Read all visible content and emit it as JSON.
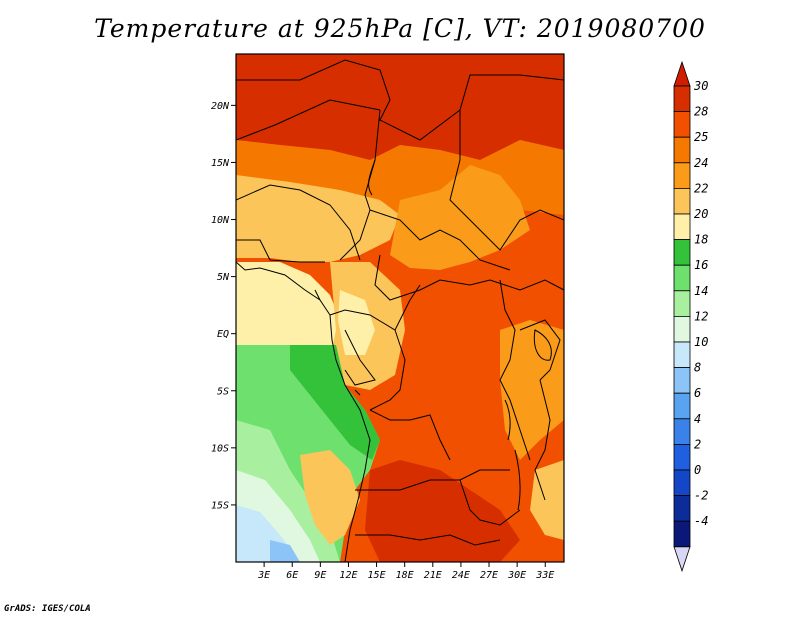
{
  "title": "Temperature at 925hPa [C], VT: 2019080700",
  "credit": "GrADS: IGES/COLA",
  "map": {
    "lat_ticks": [
      {
        "lat": 20,
        "label": "20N"
      },
      {
        "lat": 15,
        "label": "15N"
      },
      {
        "lat": 10,
        "label": "10N"
      },
      {
        "lat": 5,
        "label": "5N"
      },
      {
        "lat": 0,
        "label": "EQ"
      },
      {
        "lat": -5,
        "label": "5S"
      },
      {
        "lat": -10,
        "label": "10S"
      },
      {
        "lat": -15,
        "label": "15S"
      }
    ],
    "lon_ticks": [
      {
        "lon": 3,
        "label": "3E"
      },
      {
        "lon": 6,
        "label": "6E"
      },
      {
        "lon": 9,
        "label": "9E"
      },
      {
        "lon": 12,
        "label": "12E"
      },
      {
        "lon": 15,
        "label": "15E"
      },
      {
        "lon": 18,
        "label": "18E"
      },
      {
        "lon": 21,
        "label": "21E"
      },
      {
        "lon": 24,
        "label": "24E"
      },
      {
        "lon": 27,
        "label": "27E"
      },
      {
        "lon": 30,
        "label": "30E"
      },
      {
        "lon": 33,
        "label": "33E"
      }
    ],
    "extent": {
      "lon_min": 0,
      "lon_max": 35,
      "lat_min": -20,
      "lat_max": 24.5
    }
  },
  "colorbar": {
    "labels": [
      "30",
      "28",
      "25",
      "24",
      "22",
      "20",
      "18",
      "16",
      "14",
      "12",
      "10",
      "8",
      "6",
      "4",
      "2",
      "0",
      "-2",
      "-4"
    ],
    "colors": [
      "#d72e00",
      "#f05000",
      "#f57800",
      "#fa9b1a",
      "#fcc55a",
      "#fef0a8",
      "#34c23a",
      "#6ee06e",
      "#a8f0a0",
      "#dff8df",
      "#c7e7fb",
      "#8dc4f7",
      "#5aa3f0",
      "#3a82ea",
      "#1f5fe0",
      "#1446c8",
      "#0c2c9a",
      "#0a1878"
    ],
    "top_arrow_color": "#d21c00",
    "bottom_arrow_color": "#d8d8f5"
  }
}
